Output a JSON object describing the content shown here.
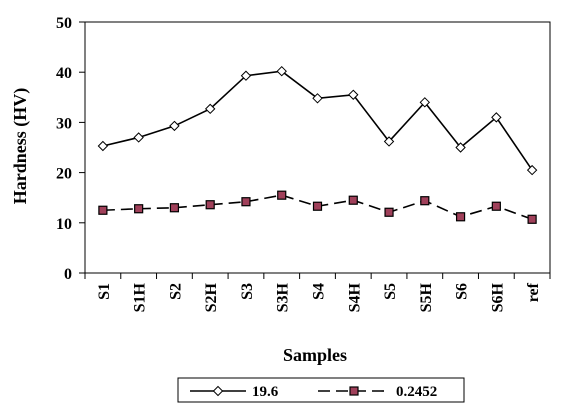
{
  "chart_data": {
    "type": "line",
    "categories": [
      "S1",
      "S1H",
      "S2",
      "S2H",
      "S3",
      "S3H",
      "S4",
      "S4H",
      "S5",
      "S5H",
      "S6",
      "S6H",
      "ref"
    ],
    "series": [
      {
        "name": "19.6",
        "values": [
          25.3,
          27.0,
          29.3,
          32.7,
          39.3,
          40.2,
          34.8,
          35.5,
          26.2,
          34.0,
          25.0,
          31.0,
          20.5
        ],
        "marker": "diamond",
        "line_style": "solid",
        "color": "#000000"
      },
      {
        "name": "0.2452",
        "values": [
          12.5,
          12.8,
          13.0,
          13.6,
          14.2,
          15.5,
          13.3,
          14.5,
          12.1,
          14.4,
          11.2,
          13.3,
          10.7
        ],
        "marker": "square",
        "line_style": "dashed",
        "color": "#000000",
        "marker_fill": "#a0405a"
      }
    ],
    "xlabel": "Samples",
    "ylabel": "Hardness (HV)",
    "ylim": [
      0,
      50
    ],
    "yticks": [
      0,
      10,
      20,
      30,
      40,
      50
    ],
    "grid": false,
    "legend_position": "bottom"
  }
}
